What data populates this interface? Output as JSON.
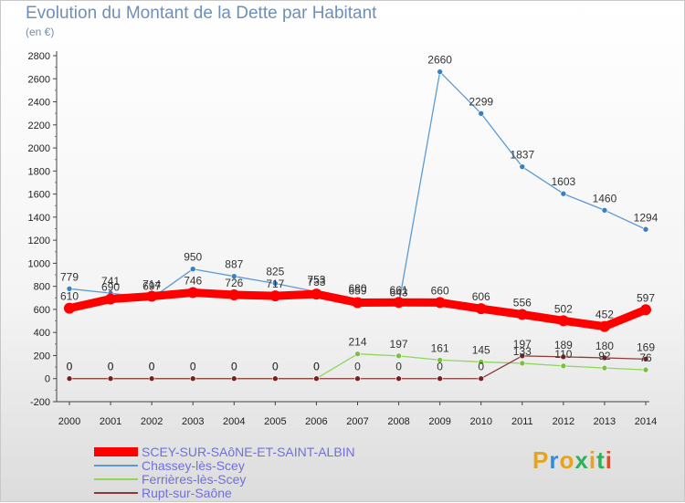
{
  "title": "Evolution du Montant de la Dette par Habitant",
  "subtitle": "(en €)",
  "brand": {
    "text": "Proxiti",
    "colors": [
      "#e8a21b",
      "#2f8fd6",
      "#e8a21b",
      "#2fb05a",
      "#e8a21b",
      "#2fb05a",
      "#e84a1b"
    ]
  },
  "chart_data": {
    "type": "line",
    "x": [
      "2000",
      "2001",
      "2002",
      "2003",
      "2004",
      "2005",
      "2006",
      "2007",
      "2008",
      "2009",
      "2010",
      "2011",
      "2012",
      "2013",
      "2014"
    ],
    "ylim": [
      -200,
      2800
    ],
    "yticks": [
      -200,
      0,
      200,
      400,
      600,
      800,
      1000,
      1200,
      1400,
      1600,
      1800,
      2000,
      2200,
      2400,
      2600,
      2800
    ],
    "grid": false,
    "legend": "bottom-left",
    "series": [
      {
        "name": "Chassey-lès-Scey",
        "color": "#5b9bd5",
        "marker": "#3a7fc0",
        "values": [
          779,
          741,
          697,
          950,
          887,
          825,
          753,
          680,
          643,
          2660,
          2299,
          1837,
          1603,
          1460,
          1294
        ]
      },
      {
        "name": "Ferrières-lès-Scey",
        "color": "#8fd65b",
        "marker": "#7ac043",
        "values": [
          0,
          0,
          0,
          0,
          0,
          0,
          0,
          214,
          197,
          161,
          145,
          133,
          110,
          92,
          76
        ]
      },
      {
        "name": "Rupt-sur-Saône",
        "color": "#8b3a3a",
        "marker": "#7a1f1f",
        "values": [
          0,
          0,
          0,
          0,
          0,
          0,
          0,
          0,
          0,
          0,
          0,
          197,
          189,
          180,
          169
        ]
      },
      {
        "name": "SCEY-SUR-SAôNE-ET-SAINT-ALBIN",
        "color": "#ff0000",
        "marker": "#ff0000",
        "values": [
          610,
          690,
          714,
          746,
          726,
          717,
          733,
          659,
          661,
          660,
          606,
          556,
          502,
          452,
          597
        ]
      }
    ],
    "value_labels": [
      [
        "779",
        "741",
        "697",
        "950",
        "887",
        "825",
        "753",
        "680",
        "643",
        "2660",
        "2299",
        "1837",
        "1603",
        "1460",
        "1294"
      ],
      [
        "0",
        "0",
        "0",
        "0",
        "0",
        "0",
        "0",
        "214",
        "197",
        "161",
        "145",
        "133",
        "110",
        "92",
        "76"
      ],
      [
        "0",
        "0",
        "0",
        "0",
        "0",
        "0",
        "0",
        "0",
        "0",
        "0",
        "0",
        "197",
        "189",
        "180",
        "169"
      ],
      [
        "610",
        "690",
        "714",
        "746",
        "726",
        "717",
        "733",
        "659",
        "661",
        "660",
        "606",
        "556",
        "502",
        "452",
        "597"
      ]
    ]
  },
  "legend_items": [
    {
      "label": "SCEY-SUR-SAôNE-ET-SAINT-ALBIN",
      "color": "#ff0000"
    },
    {
      "label": "Chassey-lès-Scey",
      "color": "#5b9bd5"
    },
    {
      "label": "Ferrières-lès-Scey",
      "color": "#8fd65b"
    },
    {
      "label": "Rupt-sur-Saône",
      "color": "#8b3a3a"
    }
  ]
}
